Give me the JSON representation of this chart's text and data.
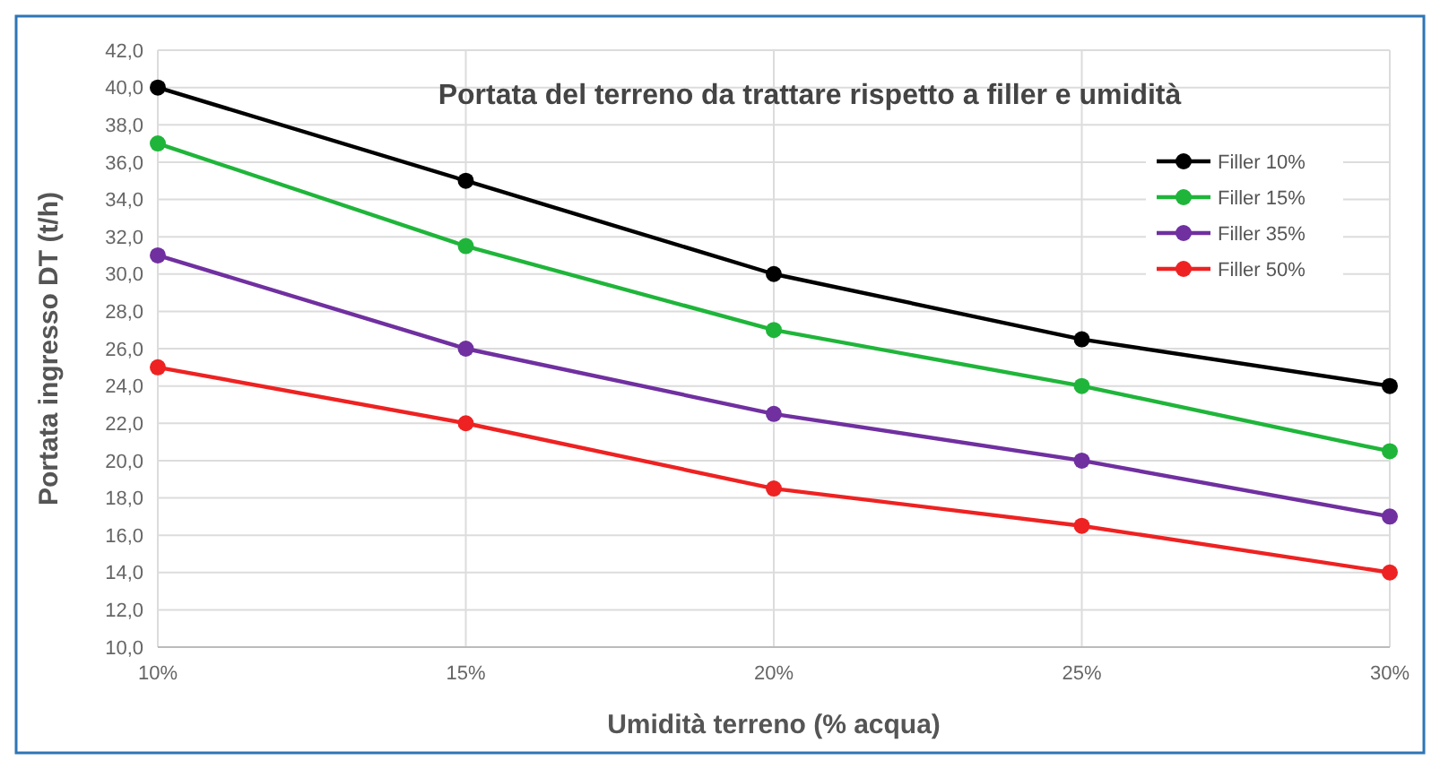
{
  "chart_data": {
    "type": "line",
    "title": "Portata del terreno da trattare rispetto a filler e umidità",
    "xlabel": "Umidità terreno (% acqua)",
    "ylabel": "Portata ingresso DT (t/h)",
    "categories": [
      "10%",
      "15%",
      "20%",
      "25%",
      "30%"
    ],
    "series": [
      {
        "name": "Filler 10%",
        "color": "#000000",
        "values": [
          40,
          35,
          30,
          26.5,
          24
        ]
      },
      {
        "name": "Filler 15%",
        "color": "#1fb53a",
        "values": [
          37,
          31.5,
          27,
          24,
          20.5
        ]
      },
      {
        "name": "Filler 35%",
        "color": "#7030a0",
        "values": [
          31,
          26,
          22.5,
          20,
          17
        ]
      },
      {
        "name": "Filler 50%",
        "color": "#ee2222",
        "values": [
          25,
          22,
          18.5,
          16.5,
          14
        ]
      }
    ],
    "ylim": [
      10,
      42
    ],
    "yticks": [
      {
        "value": 10,
        "label": "10,0"
      },
      {
        "value": 12,
        "label": "12,0"
      },
      {
        "value": 14,
        "label": "14,0"
      },
      {
        "value": 16,
        "label": "16,0"
      },
      {
        "value": 18,
        "label": "18,0"
      },
      {
        "value": 20,
        "label": "20,0"
      },
      {
        "value": 22,
        "label": "22,0"
      },
      {
        "value": 24,
        "label": "24,0"
      },
      {
        "value": 26,
        "label": "26,0"
      },
      {
        "value": 28,
        "label": "28,0"
      },
      {
        "value": 30,
        "label": "30,0"
      },
      {
        "value": 32,
        "label": "32,0"
      },
      {
        "value": 34,
        "label": "34,0"
      },
      {
        "value": 36,
        "label": "36,0"
      },
      {
        "value": 38,
        "label": "38,0"
      },
      {
        "value": 40,
        "label": "40,0"
      },
      {
        "value": 42,
        "label": "42,0"
      }
    ],
    "grid": true,
    "legend": "top right",
    "marker": "circle",
    "line_style": "solid"
  }
}
